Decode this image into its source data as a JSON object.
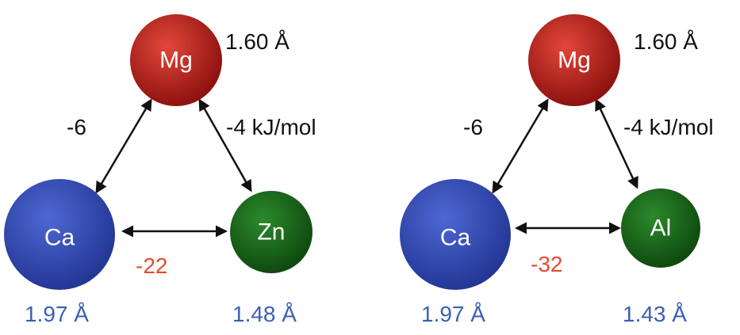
{
  "colors": {
    "black_text": "#111111",
    "red_text": "#e64a2e",
    "blue_text": "#3a5fb6",
    "mg": "#b01a14",
    "ca": "#2f45b4",
    "green": "#166316"
  },
  "panels": [
    {
      "top_atom": {
        "label": "Mg",
        "radius_label": "1.60 Å"
      },
      "left_atom": {
        "label": "Ca",
        "radius_label": "1.97 Å"
      },
      "right_atom": {
        "label": "Zn",
        "radius_label": "1.48 Å"
      },
      "left_edge_label": "-6",
      "right_edge_label": "-4 kJ/mol",
      "bottom_edge_label": "-22"
    },
    {
      "top_atom": {
        "label": "Mg",
        "radius_label": "1.60 Å"
      },
      "left_atom": {
        "label": "Ca",
        "radius_label": "1.97 Å"
      },
      "right_atom": {
        "label": "Al",
        "radius_label": "1.43 Å"
      },
      "left_edge_label": "-6",
      "right_edge_label": "-4 kJ/mol",
      "bottom_edge_label": "-32"
    }
  ]
}
